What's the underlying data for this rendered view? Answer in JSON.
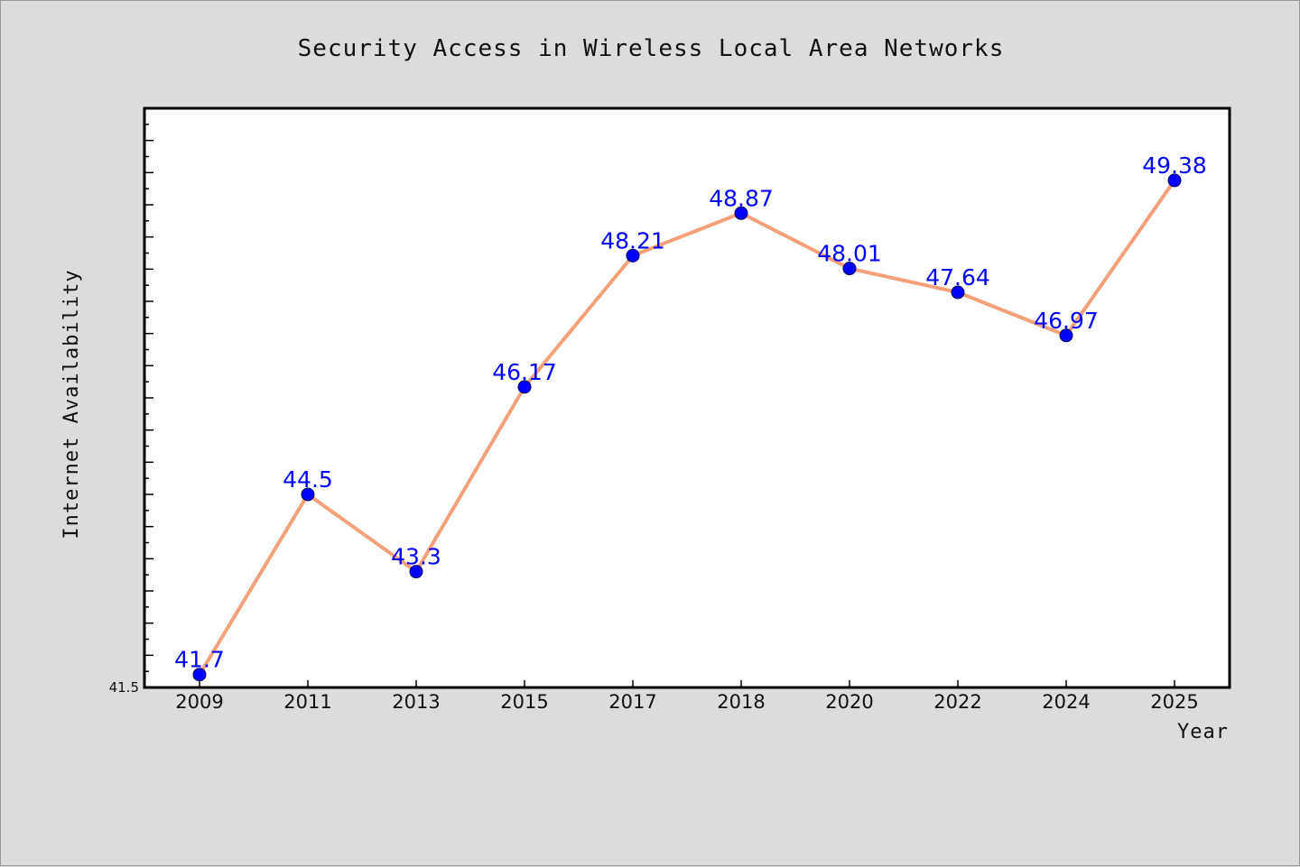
{
  "chart_data": {
    "type": "line",
    "title": "Security Access in Wireless Local Area Networks",
    "xlabel": "Year",
    "ylabel": "Internet Availability",
    "categories": [
      "2009",
      "2011",
      "2013",
      "2015",
      "2017",
      "2018",
      "2020",
      "2022",
      "2024",
      "2025"
    ],
    "series": [
      {
        "values": [
          41.7,
          44.5,
          43.3,
          46.17,
          48.21,
          48.87,
          48.01,
          47.64,
          46.97,
          49.38
        ],
        "data_labels": [
          "41.7",
          "44.5",
          "43.3",
          "46.17",
          "48.21",
          "48.87",
          "48.01",
          "47.64",
          "46.97",
          "49.38"
        ]
      }
    ],
    "ylim": [
      41.5,
      50.5
    ],
    "y_tick_labels": [
      "41.5"
    ],
    "grid": false,
    "legend": "none",
    "colors": {
      "line": "#f4a07a",
      "marker": "#0000ff",
      "data_label": "#0000ff",
      "plot_background": "#ffffff",
      "figure_background": "#dcdcdc"
    }
  }
}
